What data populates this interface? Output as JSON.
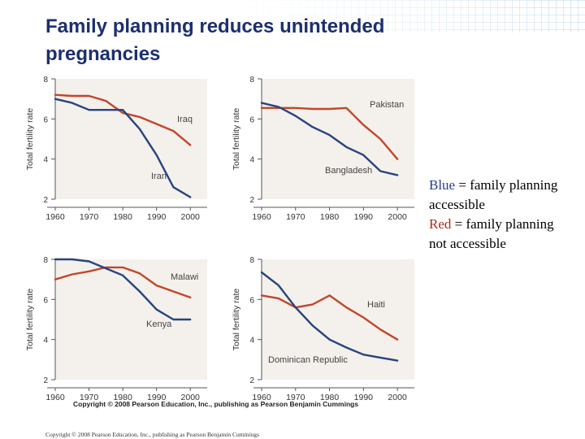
{
  "title": "Family planning reduces unintended pregnancies",
  "legend": {
    "blue_word": "Blue",
    "blue_rest": " = family planning accessible",
    "red_word": "Red",
    "red_rest": " = family planning not accessible"
  },
  "figure_credit": "Copyright © 2008 Pearson Education, Inc., publishing as Pearson Benjamin Cummings",
  "footer": "Copyright © 2008 Pearson Education, Inc., publishing as Pearson Benjamin Cummings",
  "colors": {
    "blue_line": "#27447f",
    "red_line": "#c0472a",
    "plot_bg": "#f4f0ec",
    "title": "#1c2f6e"
  },
  "chart_data": [
    {
      "type": "line",
      "ylabel": "Total fertility rate",
      "xlabel": "",
      "x_ticks": [
        "1960",
        "1970",
        "1980",
        "1990",
        "2000"
      ],
      "y_ticks": [
        "2",
        "4",
        "6",
        "8"
      ],
      "xlim": [
        1960,
        2005
      ],
      "ylim": [
        2,
        8
      ],
      "series": [
        {
          "name": "Iraq",
          "color_key": "red_line",
          "x": [
            1960,
            1965,
            1970,
            1975,
            1980,
            1985,
            1990,
            1995,
            2000
          ],
          "y": [
            7.2,
            7.15,
            7.15,
            6.9,
            6.3,
            6.1,
            5.75,
            5.4,
            4.7
          ]
        },
        {
          "name": "Iran",
          "color_key": "blue_line",
          "x": [
            1960,
            1965,
            1970,
            1975,
            1980,
            1985,
            1990,
            1995,
            2000
          ],
          "y": [
            7.0,
            6.8,
            6.45,
            6.45,
            6.45,
            5.5,
            4.2,
            2.6,
            2.1
          ]
        }
      ]
    },
    {
      "type": "line",
      "ylabel": "Total fertility rate",
      "xlabel": "",
      "x_ticks": [
        "1960",
        "1970",
        "1980",
        "1990",
        "2000"
      ],
      "y_ticks": [
        "2",
        "4",
        "6",
        "8"
      ],
      "xlim": [
        1960,
        2005
      ],
      "ylim": [
        2,
        8
      ],
      "series": [
        {
          "name": "Pakistan",
          "color_key": "red_line",
          "x": [
            1960,
            1965,
            1970,
            1975,
            1980,
            1985,
            1990,
            1995,
            2000
          ],
          "y": [
            6.55,
            6.55,
            6.55,
            6.5,
            6.5,
            6.55,
            5.7,
            5.0,
            4.0
          ]
        },
        {
          "name": "Bangladesh",
          "color_key": "blue_line",
          "x": [
            1960,
            1965,
            1970,
            1975,
            1980,
            1985,
            1990,
            1995,
            2000
          ],
          "y": [
            6.8,
            6.6,
            6.15,
            5.6,
            5.2,
            4.6,
            4.2,
            3.4,
            3.2
          ]
        }
      ]
    },
    {
      "type": "line",
      "ylabel": "Total fertility rate",
      "xlabel": "",
      "x_ticks": [
        "1960",
        "1970",
        "1980",
        "1990",
        "2000"
      ],
      "y_ticks": [
        "2",
        "4",
        "6",
        "8"
      ],
      "xlim": [
        1960,
        2005
      ],
      "ylim": [
        2,
        8
      ],
      "series": [
        {
          "name": "Malawi",
          "color_key": "red_line",
          "x": [
            1960,
            1965,
            1970,
            1975,
            1980,
            1985,
            1990,
            1995,
            2000
          ],
          "y": [
            7.0,
            7.25,
            7.4,
            7.6,
            7.6,
            7.3,
            6.7,
            6.4,
            6.1
          ]
        },
        {
          "name": "Kenya",
          "color_key": "blue_line",
          "x": [
            1960,
            1965,
            1970,
            1975,
            1980,
            1985,
            1990,
            1995,
            2000
          ],
          "y": [
            8.0,
            8.0,
            7.9,
            7.55,
            7.2,
            6.4,
            5.5,
            5.0,
            5.0
          ]
        }
      ]
    },
    {
      "type": "line",
      "ylabel": "Total fertility rate",
      "xlabel": "",
      "x_ticks": [
        "1960",
        "1970",
        "1980",
        "1990",
        "2000"
      ],
      "y_ticks": [
        "2",
        "4",
        "6",
        "8"
      ],
      "xlim": [
        1960,
        2005
      ],
      "ylim": [
        2,
        8
      ],
      "series": [
        {
          "name": "Haiti",
          "color_key": "red_line",
          "x": [
            1960,
            1965,
            1970,
            1975,
            1980,
            1985,
            1990,
            1995,
            2000
          ],
          "y": [
            6.2,
            6.05,
            5.6,
            5.75,
            6.2,
            5.6,
            5.1,
            4.5,
            4.0
          ]
        },
        {
          "name": "Dominican Republic",
          "color_key": "blue_line",
          "x": [
            1960,
            1965,
            1970,
            1975,
            1980,
            1985,
            1990,
            1995,
            2000
          ],
          "y": [
            7.35,
            6.7,
            5.6,
            4.7,
            4.0,
            3.6,
            3.25,
            3.1,
            2.95
          ]
        }
      ]
    }
  ]
}
